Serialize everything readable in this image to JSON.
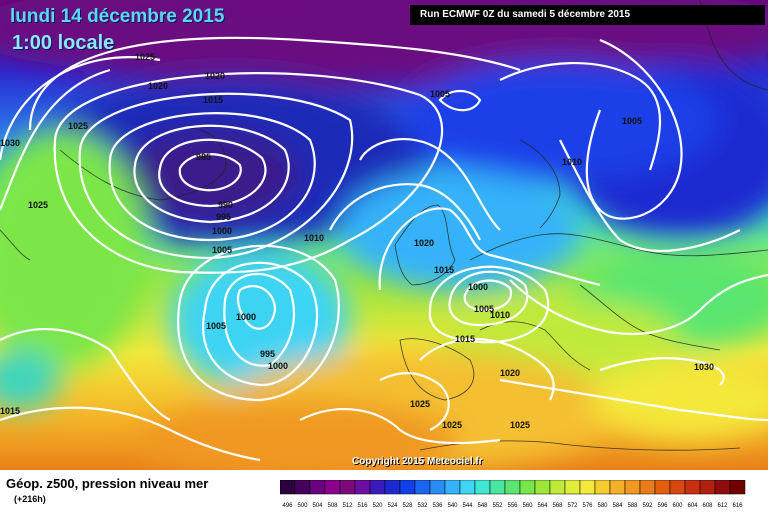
{
  "title": {
    "date": "lundi 14 décembre 2015",
    "time": "1:00 locale"
  },
  "run_info": "Run ECMWF 0Z du samedi 5 décembre 2015",
  "copyright": "Copyright 2015 Meteociel.fr",
  "legend": {
    "title": "Géop. z500, pression niveau mer",
    "step": "(+216h)",
    "values": [
      496,
      500,
      504,
      508,
      512,
      516,
      520,
      524,
      528,
      532,
      536,
      540,
      544,
      548,
      552,
      556,
      560,
      564,
      568,
      572,
      576,
      580,
      584,
      588,
      592,
      596,
      600,
      604,
      608,
      612,
      616
    ],
    "colors": [
      "#2a0040",
      "#44005a",
      "#6a0080",
      "#8c0090",
      "#7a0a7a",
      "#6a0fa0",
      "#3a1ab8",
      "#1a2ad0",
      "#1040e8",
      "#1a66f0",
      "#2a8cf6",
      "#36b2fa",
      "#3ed4f4",
      "#40e6d0",
      "#4ae6a0",
      "#5ae670",
      "#78e64a",
      "#9ce63a",
      "#c0ea3a",
      "#e0ee3a",
      "#f4e83a",
      "#f4cc30",
      "#f4b028",
      "#f09820",
      "#e87c18",
      "#e06010",
      "#d84810",
      "#c83010",
      "#b02010",
      "#900c0c",
      "#700000"
    ]
  },
  "isobars": [
    {
      "label": "1025"
    },
    {
      "label": "1020"
    },
    {
      "label": "1020"
    },
    {
      "label": "1015"
    },
    {
      "label": "1005"
    },
    {
      "label": "1025"
    },
    {
      "label": "1030"
    },
    {
      "label": "985"
    },
    {
      "label": "1010"
    },
    {
      "label": "1005"
    },
    {
      "label": "990"
    },
    {
      "label": "995"
    },
    {
      "label": "1000"
    },
    {
      "label": "1025"
    },
    {
      "label": "1005"
    },
    {
      "label": "1010"
    },
    {
      "label": "1020"
    },
    {
      "label": "1015"
    },
    {
      "label": "1000"
    },
    {
      "label": "1005"
    },
    {
      "label": "1010"
    },
    {
      "label": "1005"
    },
    {
      "label": "1000"
    },
    {
      "label": "995"
    },
    {
      "label": "1000"
    },
    {
      "label": "1015"
    },
    {
      "label": "1020"
    },
    {
      "label": "1025"
    },
    {
      "label": "1025"
    },
    {
      "label": "1025"
    },
    {
      "label": "1015"
    },
    {
      "label": "1030"
    }
  ]
}
